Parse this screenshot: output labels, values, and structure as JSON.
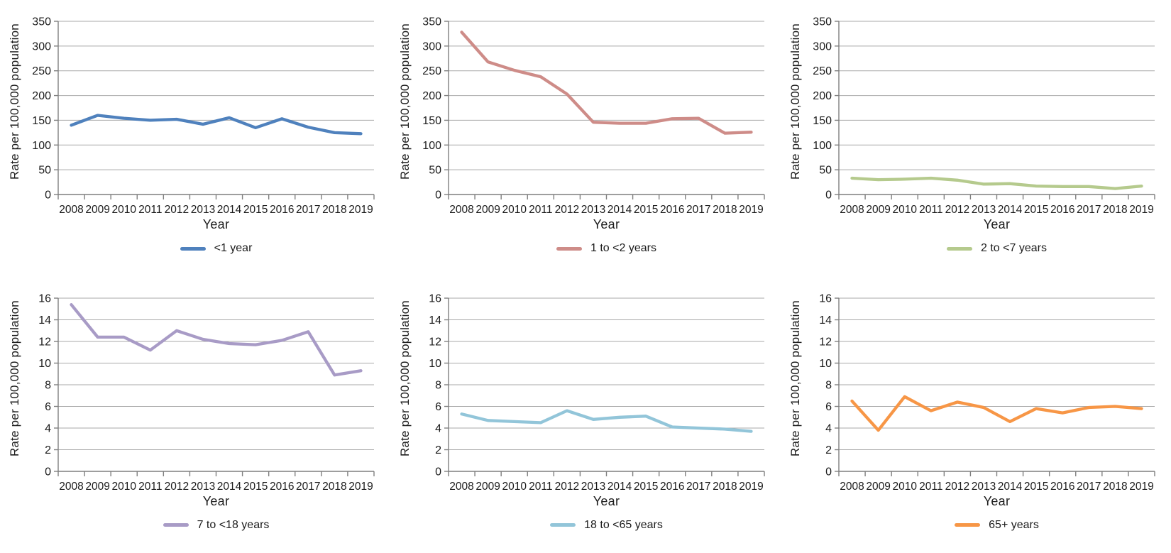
{
  "shared": {
    "ylabel": "Rate per 100,000 population",
    "xlabel": "Year"
  },
  "chart_data": [
    {
      "type": "line",
      "x": [
        "2008",
        "2009",
        "2010",
        "2011",
        "2012",
        "2013",
        "2014",
        "2015",
        "2016",
        "2017",
        "2018",
        "2019"
      ],
      "series": [
        {
          "name": "<1 year",
          "values": [
            140,
            160,
            154,
            150,
            152,
            142,
            155,
            135,
            153,
            136,
            125,
            123
          ]
        }
      ],
      "color": "#4F81BD",
      "ylabel": "Rate per 100,000 population",
      "xlabel": "Year",
      "ylim": [
        0,
        350
      ],
      "ytick": 50,
      "grid": true,
      "legend_position": "bottom"
    },
    {
      "type": "line",
      "x": [
        "2008",
        "2009",
        "2010",
        "2011",
        "2012",
        "2013",
        "2014",
        "2015",
        "2016",
        "2017",
        "2018",
        "2019"
      ],
      "series": [
        {
          "name": "1 to <2 years",
          "values": [
            328,
            268,
            251,
            238,
            203,
            146,
            144,
            144,
            153,
            154,
            124,
            126
          ]
        }
      ],
      "color": "#CE8C88",
      "ylabel": "Rate per 100,000 population",
      "xlabel": "Year",
      "ylim": [
        0,
        350
      ],
      "ytick": 50,
      "grid": true,
      "legend_position": "bottom"
    },
    {
      "type": "line",
      "x": [
        "2008",
        "2009",
        "2010",
        "2011",
        "2012",
        "2013",
        "2014",
        "2015",
        "2016",
        "2017",
        "2018",
        "2019"
      ],
      "series": [
        {
          "name": "2 to <7 years",
          "values": [
            33,
            30,
            31,
            33,
            29,
            21,
            22,
            17,
            16,
            16,
            12,
            17
          ]
        }
      ],
      "color": "#B5CA8D",
      "ylabel": "Rate per 100,000 population",
      "xlabel": "Year",
      "ylim": [
        0,
        350
      ],
      "ytick": 50,
      "grid": true,
      "legend_position": "bottom"
    },
    {
      "type": "line",
      "x": [
        "2008",
        "2009",
        "2010",
        "2011",
        "2012",
        "2013",
        "2014",
        "2015",
        "2016",
        "2017",
        "2018",
        "2019"
      ],
      "series": [
        {
          "name": "7 to <18 years",
          "values": [
            15.4,
            12.4,
            12.4,
            11.2,
            13.0,
            12.2,
            11.8,
            11.7,
            12.1,
            12.9,
            8.9,
            9.3
          ]
        }
      ],
      "color": "#A89BC6",
      "ylabel": "Rate per 100,000 population",
      "xlabel": "Year",
      "ylim": [
        0,
        16
      ],
      "ytick": 2,
      "grid": true,
      "legend_position": "bottom"
    },
    {
      "type": "line",
      "x": [
        "2008",
        "2009",
        "2010",
        "2011",
        "2012",
        "2013",
        "2014",
        "2015",
        "2016",
        "2017",
        "2018",
        "2019"
      ],
      "series": [
        {
          "name": "18 to <65 years",
          "values": [
            5.3,
            4.7,
            4.6,
            4.5,
            5.6,
            4.8,
            5.0,
            5.1,
            4.1,
            4.0,
            3.9,
            3.7
          ]
        }
      ],
      "color": "#92C5D9",
      "ylabel": "Rate per 100,000 population",
      "xlabel": "Year",
      "ylim": [
        0,
        16
      ],
      "ytick": 2,
      "grid": true,
      "legend_position": "bottom"
    },
    {
      "type": "line",
      "x": [
        "2008",
        "2009",
        "2010",
        "2011",
        "2012",
        "2013",
        "2014",
        "2015",
        "2016",
        "2017",
        "2018",
        "2019"
      ],
      "series": [
        {
          "name": "65+ years",
          "values": [
            6.5,
            3.8,
            6.9,
            5.6,
            6.4,
            5.9,
            4.6,
            5.8,
            5.4,
            5.9,
            6.0,
            5.8
          ]
        }
      ],
      "color": "#F79646",
      "ylabel": "Rate per 100,000 population",
      "xlabel": "Year",
      "ylim": [
        0,
        16
      ],
      "ytick": 2,
      "grid": true,
      "legend_position": "bottom"
    }
  ],
  "style": {
    "grid_color": "#A9A9A9",
    "axis_color": "#7F7F7F",
    "text_color": "#1c1c1c"
  }
}
